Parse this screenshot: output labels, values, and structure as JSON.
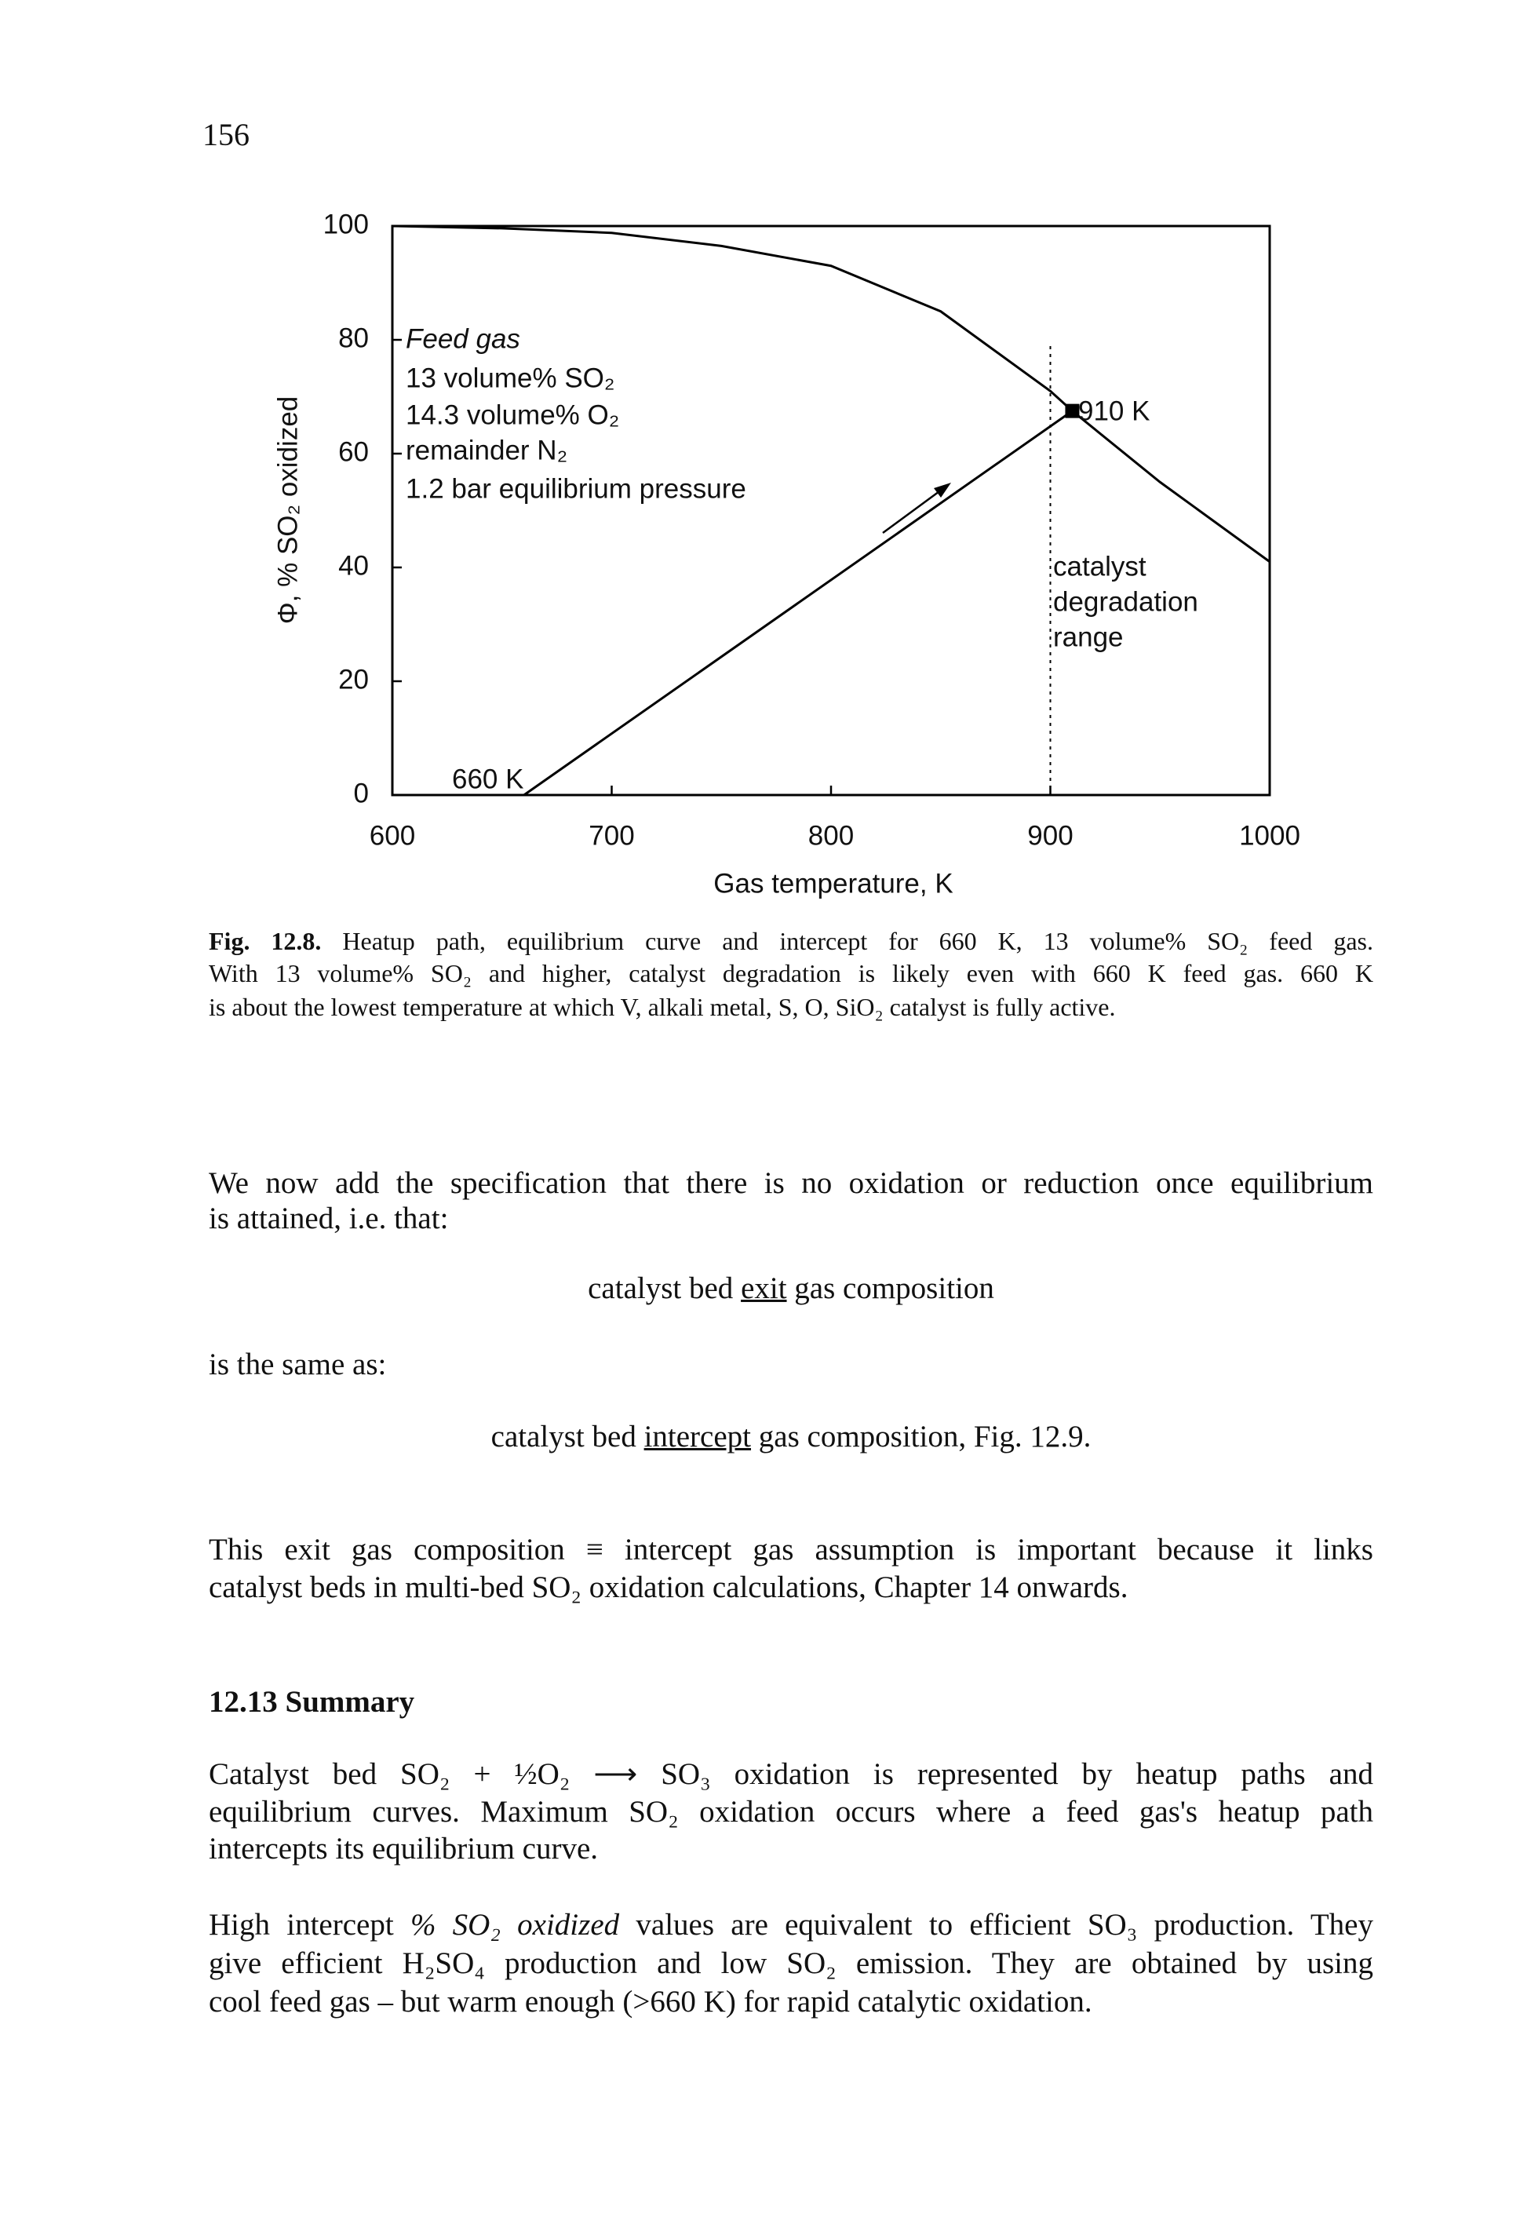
{
  "page_number": "156",
  "chart_data": {
    "type": "line",
    "x_label": "Gas temperature, K",
    "y_label": "Φ, % SO₂ oxidized",
    "xlim": [
      600,
      1000
    ],
    "ylim": [
      0,
      100
    ],
    "xticks": [
      600,
      700,
      800,
      900,
      1000
    ],
    "yticks": [
      0,
      20,
      40,
      60,
      80,
      100
    ],
    "series": [
      {
        "color": "#000000",
        "x": [
          600,
          650,
          700,
          750,
          800,
          850,
          900,
          910,
          950,
          1000
        ],
        "values": [
          100,
          99.6,
          98.8,
          96.5,
          93,
          85,
          71,
          67.5,
          55,
          41
        ]
      },
      {
        "color": "#000000",
        "x": [
          660,
          910
        ],
        "values": [
          0,
          67.5
        ]
      }
    ],
    "feed_gas_lines": [
      "Feed gas",
      "13 volume% SO₂",
      "14.3 volume% O₂",
      "remainder N₂",
      "1.2 bar equilibrium pressure"
    ],
    "point_labels": [
      "910 K",
      "660 K"
    ],
    "reference_x": 900,
    "region_label_lines": [
      "catalyst",
      "degradation",
      "range"
    ]
  },
  "caption": {
    "lines": [
      [
        {
          "text": "Fig. 12.8.",
          "style": "bold"
        },
        " Heatup path, equilibrium curve and intercept for 660 K, 13 volume% SO₂ feed gas."
      ],
      [
        "With 13 volume% SO₂ and higher, catalyst degradation is likely even with 660 K feed gas.  660 K"
      ],
      [
        "is about the lowest temperature at which V, alkali metal, S, O, SiO₂ catalyst is fully active."
      ]
    ]
  },
  "body": [
    {
      "align": "justify",
      "lines": [
        [
          "We now add the specification that there is no oxidation or reduction once equilibrium"
        ],
        [
          "is attained, i.e. that:"
        ]
      ]
    },
    {
      "align": "center",
      "lines": [
        [
          "catalyst bed ",
          {
            "text": "exit",
            "style": "underline"
          },
          " gas composition"
        ]
      ]
    },
    {
      "align": "left",
      "lines": [
        [
          "is the same as:"
        ]
      ]
    },
    {
      "align": "center",
      "lines": [
        [
          "catalyst bed ",
          {
            "text": "intercept",
            "style": "underline"
          },
          " gas composition, Fig. 12.9."
        ]
      ]
    },
    {
      "align": "justify",
      "lines": [
        [
          "This exit gas composition ≡ intercept gas assumption is important because it links"
        ],
        [
          "catalyst beds in multi-bed SO₂ oxidation calculations, Chapter 14 onwards."
        ]
      ]
    },
    {
      "align": "left",
      "lines": [
        [
          {
            "text": "12.13 Summary",
            "style": "bold"
          }
        ]
      ]
    },
    {
      "align": "justify",
      "lines": [
        [
          "Catalyst bed SO₂ + ½O₂ ⟶ SO₃ oxidation is represented by heatup paths and"
        ],
        [
          "equilibrium curves. Maximum SO₂ oxidation occurs where a feed gas's heatup path"
        ],
        [
          "intercepts its equilibrium curve."
        ]
      ]
    },
    {
      "align": "justify",
      "lines": [
        [
          "High intercept ",
          {
            "text": "% SO₂ oxidized",
            "style": "italic"
          },
          " values are equivalent to efficient SO₃ production.  They"
        ],
        [
          "give efficient H₂SO₄ production and low SO₂ emission.  They are obtained by using"
        ],
        [
          "cool feed gas – but warm enough (>660 K) for rapid catalytic oxidation."
        ]
      ]
    }
  ]
}
